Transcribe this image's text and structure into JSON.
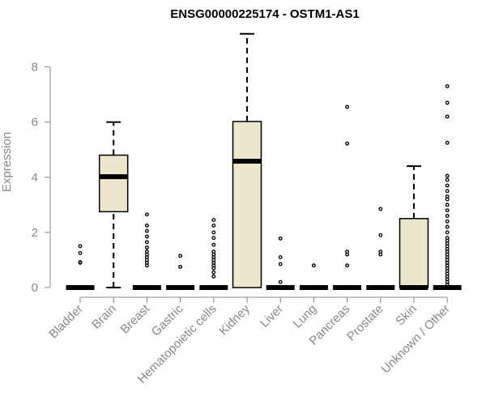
{
  "chart_data": {
    "type": "boxplot",
    "title": "ENSG00000225174 - OSTM1-AS1",
    "xlabel": "",
    "ylabel": "Expression",
    "ylim": [
      0,
      9.3
    ],
    "yticks": [
      0,
      2,
      4,
      6,
      8
    ],
    "box_fill": "#ede6cc",
    "box_stroke": "#000000",
    "categories": [
      "Bladder",
      "Brain",
      "Breast",
      "Gastric",
      "Hematopoietic cells",
      "Kidney",
      "Liver",
      "Lung",
      "Pancreas",
      "Prostate",
      "Skin",
      "Unknown / Other"
    ],
    "boxes": [
      {
        "category": "Bladder",
        "min": 0,
        "q1": 0,
        "median": 0,
        "q3": 0,
        "max": 0,
        "outliers": [
          0.9,
          0.92,
          1.25,
          1.5
        ]
      },
      {
        "category": "Brain",
        "min": 0,
        "q1": 2.75,
        "median": 4.02,
        "q3": 4.8,
        "max": 6.0,
        "outliers": []
      },
      {
        "category": "Breast",
        "min": 0,
        "q1": 0,
        "median": 0,
        "q3": 0,
        "max": 0,
        "outliers": [
          0.8,
          0.9,
          1.0,
          1.1,
          1.2,
          1.3,
          1.45,
          1.65,
          1.85,
          2.05,
          2.25,
          2.65
        ]
      },
      {
        "category": "Gastric",
        "min": 0,
        "q1": 0,
        "median": 0,
        "q3": 0,
        "max": 0,
        "outliers": [
          0.75,
          1.15
        ]
      },
      {
        "category": "Hematopoietic cells",
        "min": 0,
        "q1": 0,
        "median": 0,
        "q3": 0,
        "max": 0,
        "outliers": [
          0.4,
          0.55,
          0.7,
          0.8,
          0.9,
          1.0,
          1.1,
          1.2,
          1.3,
          1.55,
          1.8,
          2.0,
          2.25,
          2.45
        ]
      },
      {
        "category": "Kidney",
        "min": 0,
        "q1": 0,
        "median": 4.58,
        "q3": 6.02,
        "max": 9.2,
        "outliers": []
      },
      {
        "category": "Liver",
        "min": 0,
        "q1": 0,
        "median": 0,
        "q3": 0,
        "max": 0,
        "outliers": [
          0.2,
          0.85,
          1.1,
          1.78
        ]
      },
      {
        "category": "Lung",
        "min": 0,
        "q1": 0,
        "median": 0,
        "q3": 0,
        "max": 0,
        "outliers": [
          0.8
        ]
      },
      {
        "category": "Pancreas",
        "min": 0,
        "q1": 0,
        "median": 0,
        "q3": 0,
        "max": 0,
        "outliers": [
          0.8,
          1.2,
          1.3,
          5.22,
          6.55
        ]
      },
      {
        "category": "Prostate",
        "min": 0,
        "q1": 0,
        "median": 0,
        "q3": 0,
        "max": 0,
        "outliers": [
          1.2,
          1.3,
          1.9,
          2.85
        ]
      },
      {
        "category": "Skin",
        "min": 0,
        "q1": 0,
        "median": 0,
        "q3": 2.5,
        "max": 4.4,
        "outliers": []
      },
      {
        "category": "Unknown / Other",
        "min": 0,
        "q1": 0,
        "median": 0,
        "q3": 0,
        "max": 0,
        "outliers": [
          0.1,
          0.2,
          0.3,
          0.4,
          0.5,
          0.6,
          0.7,
          0.8,
          0.9,
          1.0,
          1.1,
          1.2,
          1.3,
          1.4,
          1.5,
          1.6,
          1.7,
          1.8,
          2.0,
          2.2,
          2.4,
          2.6,
          2.8,
          3.0,
          3.2,
          3.3,
          3.5,
          3.7,
          3.9,
          4.05,
          5.25,
          6.2,
          6.7,
          7.3
        ]
      }
    ]
  }
}
